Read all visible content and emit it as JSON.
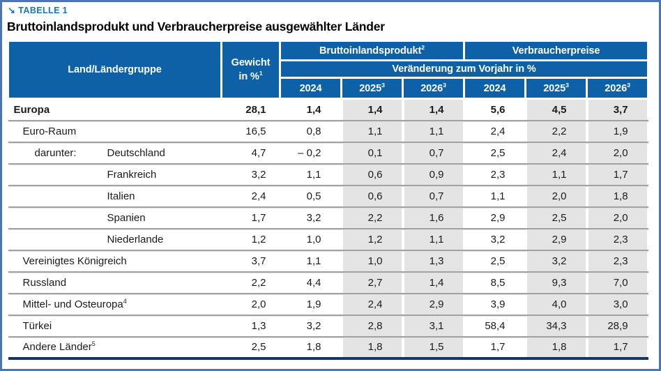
{
  "meta": {
    "table_label": "TABELLE 1",
    "arrow": "↘",
    "title": "Bruttoinlandsprodukt und Verbraucherpreise ausgewählter Länder"
  },
  "header": {
    "country_col": "Land/Ländergruppe",
    "weight_line1": "Gewicht",
    "weight_line2": "in %",
    "weight_sup": "1",
    "group_gdp": "Bruttoinlandsprodukt",
    "group_gdp_sup": "2",
    "group_cpi": "Verbraucherpreise",
    "subheader": "Veränderung zum Vorjahr in %",
    "years": [
      {
        "label": "2024",
        "sup": ""
      },
      {
        "label": "2025",
        "sup": "3"
      },
      {
        "label": "2026",
        "sup": "3"
      },
      {
        "label": "2024",
        "sup": ""
      },
      {
        "label": "2025",
        "sup": "3"
      },
      {
        "label": "2026",
        "sup": "3"
      }
    ]
  },
  "rows": [
    {
      "prefix": "",
      "name": "Europa",
      "sup": "",
      "weight": "28,1",
      "values": [
        "1,4",
        "1,4",
        "1,4",
        "5,6",
        "4,5",
        "3,7"
      ]
    },
    {
      "prefix": "",
      "name": "Euro-Raum",
      "sup": "",
      "weight": "16,5",
      "values": [
        "0,8",
        "1,1",
        "1,1",
        "2,4",
        "2,2",
        "1,9"
      ]
    },
    {
      "prefix": "darunter:",
      "name": "Deutschland",
      "sup": "",
      "weight": "4,7",
      "values": [
        "– 0,2",
        "0,1",
        "0,7",
        "2,5",
        "2,4",
        "2,0"
      ]
    },
    {
      "prefix": "",
      "name": "Frankreich",
      "sup": "",
      "weight": "3,2",
      "values": [
        "1,1",
        "0,6",
        "0,9",
        "2,3",
        "1,1",
        "1,7"
      ]
    },
    {
      "prefix": "",
      "name": "Italien",
      "sup": "",
      "weight": "2,4",
      "values": [
        "0,5",
        "0,6",
        "0,7",
        "1,1",
        "2,0",
        "1,8"
      ]
    },
    {
      "prefix": "",
      "name": "Spanien",
      "sup": "",
      "weight": "1,7",
      "values": [
        "3,2",
        "2,2",
        "1,6",
        "2,9",
        "2,5",
        "2,0"
      ]
    },
    {
      "prefix": "",
      "name": "Niederlande",
      "sup": "",
      "weight": "1,2",
      "values": [
        "1,0",
        "1,2",
        "1,1",
        "3,2",
        "2,9",
        "2,3"
      ]
    },
    {
      "prefix": "",
      "name": "Vereinigtes Königreich",
      "sup": "",
      "weight": "3,7",
      "values": [
        "1,1",
        "1,0",
        "1,3",
        "2,5",
        "3,2",
        "2,3"
      ]
    },
    {
      "prefix": "",
      "name": "Russland",
      "sup": "",
      "weight": "2,2",
      "values": [
        "4,4",
        "2,7",
        "1,4",
        "8,5",
        "9,3",
        "7,0"
      ]
    },
    {
      "prefix": "",
      "name": "Mittel- und Osteuropa",
      "sup": "4",
      "weight": "2,0",
      "values": [
        "1,9",
        "2,4",
        "2,9",
        "3,9",
        "4,0",
        "3,0"
      ]
    },
    {
      "prefix": "",
      "name": "Türkei",
      "sup": "",
      "weight": "1,3",
      "values": [
        "3,2",
        "2,8",
        "3,1",
        "58,4",
        "34,3",
        "28,9"
      ]
    },
    {
      "prefix": "",
      "name": "Andere Länder",
      "sup": "5",
      "weight": "2,5",
      "values": [
        "1,8",
        "1,8",
        "1,5",
        "1,7",
        "1,8",
        "1,7"
      ]
    }
  ],
  "colors": {
    "header_blue": "#0e61a7",
    "label_blue": "#1e73b5",
    "frame_blue": "#4a76b7",
    "bottom_rule_navy": "#14375f",
    "forecast_column_gray": "#e4e4e4",
    "row_separator_gray": "#a2a2a2"
  }
}
